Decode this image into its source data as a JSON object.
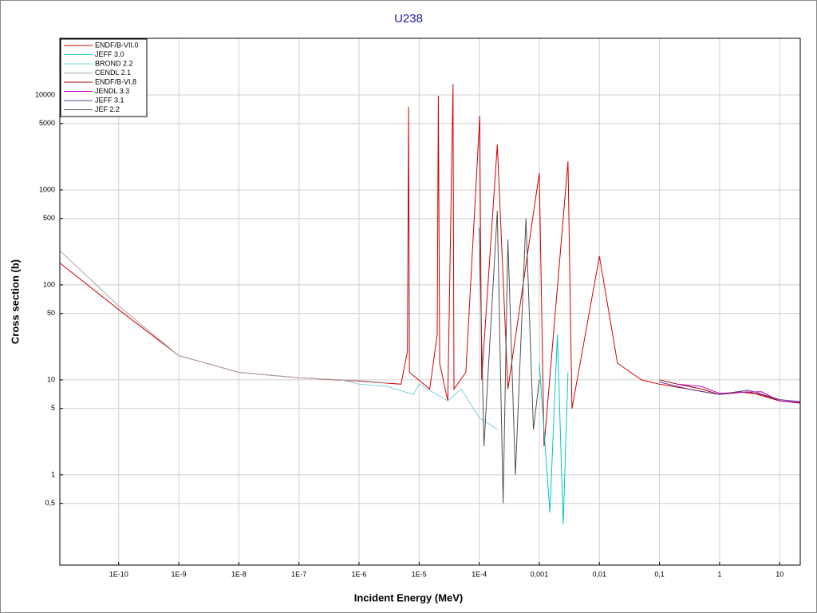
{
  "chart_data": {
    "type": "line",
    "title": "U238",
    "x_label": "Incident Energy (MeV)",
    "y_label": "Cross section (b)",
    "xscale": "log",
    "yscale": "log",
    "grid": true,
    "legend_position": "upper-left",
    "xlim": [
      1.05e-11,
      22
    ],
    "ylim": [
      0.112,
      39500
    ],
    "xticks": [
      {
        "value": 1e-10,
        "label": "1E-10"
      },
      {
        "value": 1e-09,
        "label": "1E-9"
      },
      {
        "value": 1e-08,
        "label": "1E-8"
      },
      {
        "value": 1e-07,
        "label": "1E-7"
      },
      {
        "value": 1e-06,
        "label": "1E-6"
      },
      {
        "value": 1e-05,
        "label": "1E-5"
      },
      {
        "value": 0.0001,
        "label": "1E-4"
      },
      {
        "value": 0.001,
        "label": "0,001"
      },
      {
        "value": 0.01,
        "label": "0,01"
      },
      {
        "value": 0.1,
        "label": "0,1"
      },
      1,
      10
    ],
    "yticks": [
      10000,
      5000,
      1000,
      500,
      100,
      50,
      10,
      5,
      1,
      {
        "value": 0.5,
        "label": "0,5"
      }
    ],
    "series": [
      {
        "name": "ENDF/B-VII.0",
        "color": "#d40000",
        "x": [
          1.05e-11,
          1e-10,
          1e-09,
          1e-08,
          1e-07,
          1e-06,
          5e-06,
          6.4e-06,
          6.67e-06,
          6.9e-06,
          1.5e-05,
          2e-05,
          2.09e-05,
          2.2e-05,
          3e-05,
          3.67e-05,
          3.8e-05,
          6e-05,
          0.000102,
          0.00011,
          0.0002,
          0.0003,
          0.001,
          0.0012,
          0.003,
          0.0035,
          0.01,
          0.02,
          0.05,
          0.1,
          0.3,
          1,
          3,
          10,
          22
        ],
        "values": [
          170,
          55,
          18,
          12,
          10.5,
          9.7,
          9,
          20,
          7500,
          12,
          8,
          30,
          9800,
          15,
          6,
          13000,
          8,
          12,
          6000,
          10,
          3000,
          8,
          1500,
          2,
          2000,
          5,
          200,
          15,
          10,
          9,
          8,
          7,
          7.5,
          6,
          5.8
        ]
      },
      {
        "name": "JEFF 3.0",
        "color": "#00c8c8",
        "x": [
          0.001,
          0.0015,
          0.002,
          0.0025,
          0.003
        ],
        "values": [
          15,
          0.4,
          30,
          0.3,
          12
        ]
      },
      {
        "name": "BROND 2.2",
        "color": "#7fd0e0",
        "x": [
          5e-07,
          1e-06,
          3e-06,
          8e-06,
          1e-05,
          3e-05,
          5e-05,
          0.0001,
          0.0002
        ],
        "values": [
          10,
          9,
          8.5,
          7,
          9,
          6,
          8,
          4,
          3
        ]
      },
      {
        "name": "CENDL 2.1",
        "color": "#aaaaaa",
        "x": [
          1.05e-11,
          1e-10,
          1e-09,
          1e-08,
          1e-07,
          1e-06,
          3e-06
        ],
        "values": [
          230,
          60,
          18,
          12,
          10.5,
          9.8,
          9.3
        ]
      },
      {
        "name": "ENDF/B-VI.8",
        "color": "#a00000",
        "x": [
          0.1,
          0.2,
          0.5,
          1,
          2,
          5,
          10,
          22
        ],
        "values": [
          10,
          9,
          8,
          7,
          7.5,
          7,
          6,
          5.7
        ]
      },
      {
        "name": "JENDL 3.3",
        "color": "#c000c0",
        "x": [
          0.2,
          0.5,
          1,
          2,
          5,
          10,
          22
        ],
        "values": [
          9,
          8.5,
          7.2,
          7.4,
          7.5,
          6,
          5.8
        ]
      },
      {
        "name": "JEFF 3.1",
        "color": "#6040a0",
        "x": [
          0.1,
          0.3,
          1,
          3,
          10,
          22
        ],
        "values": [
          9.5,
          8,
          7,
          7.8,
          6.2,
          5.9
        ]
      },
      {
        "name": "JEF 2.2",
        "color": "#505050",
        "x": [
          0.0001,
          0.00012,
          0.0002,
          0.00025,
          0.0003,
          0.0004,
          0.0006,
          0.0008,
          0.001
        ],
        "values": [
          400,
          2,
          600,
          0.5,
          300,
          1,
          500,
          3,
          10
        ]
      }
    ]
  }
}
